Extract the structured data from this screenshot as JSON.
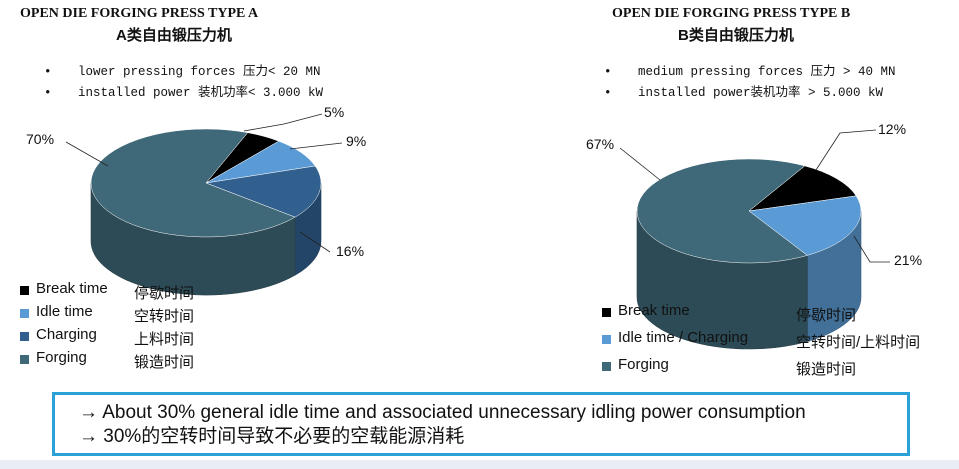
{
  "charts": [
    {
      "title": "OPEN DIE FORGING PRESS TYPE A",
      "subtitle": "A类自由锻压力机",
      "bullets": [
        {
          "dot": "•",
          "text": "lower pressing forces 压力< 20 MN"
        },
        {
          "dot": "•",
          "text": "installed power 装机功率< 3.000 kW"
        }
      ]
    },
    {
      "title": "OPEN DIE FORGING PRESS TYPE B",
      "subtitle": "B类自由锻压力机",
      "bullets": [
        {
          "dot": "•",
          "text": "medium pressing forces 压力 > 40 MN"
        },
        {
          "dot": "•",
          "text": "installed power装机功率 > 5.000 kW"
        }
      ]
    }
  ],
  "chart_data": [
    {
      "type": "pie",
      "title": "OPEN DIE FORGING PRESS TYPE A",
      "labels": [
        "Break time",
        "Idle time",
        "Charging",
        "Forging"
      ],
      "labels_zh": [
        "停歇时间",
        "空转时间",
        "上料时间",
        "锻造时间"
      ],
      "values": [
        5,
        9,
        16,
        70
      ],
      "value_labels": [
        "5%",
        "9%",
        "16%",
        "70%"
      ],
      "colors": [
        "#000000",
        "#5b9bd5",
        "#31608f",
        "#3f6878"
      ],
      "legend": "bottom-left"
    },
    {
      "type": "pie",
      "title": "OPEN DIE FORGING PRESS TYPE B",
      "labels": [
        "Break time",
        "Idle time / Charging",
        "Forging"
      ],
      "labels_zh": [
        "停歇时间",
        "空转时间/上料时间",
        "锻造时间"
      ],
      "values": [
        12,
        21,
        67
      ],
      "value_labels": [
        "12%",
        "21%",
        "67%"
      ],
      "colors": [
        "#000000",
        "#5b9bd5",
        "#3f6878"
      ],
      "legend": "bottom-left"
    }
  ],
  "note": {
    "lines": [
      "→ About 30% general idle time and associated unnecessary idling power consumption",
      "→ 30%的空转时间导致不必要的空载能源消耗"
    ]
  }
}
